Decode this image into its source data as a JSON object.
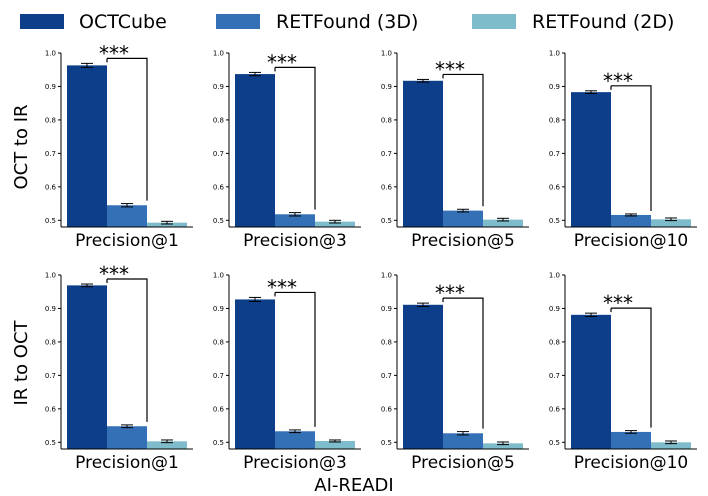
{
  "legend": [
    {
      "name": "OCTCube",
      "color": "#0d3e8a"
    },
    {
      "name": "RETFound (3D)",
      "color": "#3470b5"
    },
    {
      "name": "RETFound (2D)",
      "color": "#7fbccb"
    }
  ],
  "row_labels": [
    "OCT to IR",
    "IR to OCT"
  ],
  "xlabel": "AI-READI",
  "significance_label": "***",
  "chart_data": [
    {
      "type": "bar",
      "row": "OCT to IR",
      "category": "Precision@1",
      "ylim": [
        0.48,
        1.0
      ],
      "yticks": [
        "0.5",
        "0.6",
        "0.7",
        "0.8",
        "0.9",
        "1.0"
      ],
      "series": [
        {
          "name": "OCTCube",
          "values": [
            0.963
          ],
          "errors": [
            0.006
          ]
        },
        {
          "name": "RETFound (3D)",
          "values": [
            0.545
          ],
          "errors": [
            0.005
          ]
        },
        {
          "name": "RETFound (2D)",
          "values": [
            0.493
          ],
          "errors": [
            0.004
          ]
        }
      ]
    },
    {
      "type": "bar",
      "row": "OCT to IR",
      "category": "Precision@3",
      "ylim": [
        0.48,
        1.0
      ],
      "yticks": [
        "0.5",
        "0.6",
        "0.7",
        "0.8",
        "0.9",
        "1.0"
      ],
      "series": [
        {
          "name": "OCTCube",
          "values": [
            0.937
          ],
          "errors": [
            0.005
          ]
        },
        {
          "name": "RETFound (3D)",
          "values": [
            0.518
          ],
          "errors": [
            0.005
          ]
        },
        {
          "name": "RETFound (2D)",
          "values": [
            0.496
          ],
          "errors": [
            0.004
          ]
        }
      ]
    },
    {
      "type": "bar",
      "row": "OCT to IR",
      "category": "Precision@5",
      "ylim": [
        0.48,
        1.0
      ],
      "yticks": [
        "0.5",
        "0.6",
        "0.7",
        "0.8",
        "0.9",
        "1.0"
      ],
      "series": [
        {
          "name": "OCTCube",
          "values": [
            0.917
          ],
          "errors": [
            0.004
          ]
        },
        {
          "name": "RETFound (3D)",
          "values": [
            0.529
          ],
          "errors": [
            0.004
          ]
        },
        {
          "name": "RETFound (2D)",
          "values": [
            0.502
          ],
          "errors": [
            0.004
          ]
        }
      ]
    },
    {
      "type": "bar",
      "row": "OCT to IR",
      "category": "Precision@10",
      "ylim": [
        0.48,
        1.0
      ],
      "yticks": [
        "0.5",
        "0.6",
        "0.7",
        "0.8",
        "0.9",
        "1.0"
      ],
      "series": [
        {
          "name": "OCTCube",
          "values": [
            0.883
          ],
          "errors": [
            0.004
          ]
        },
        {
          "name": "RETFound (3D)",
          "values": [
            0.516
          ],
          "errors": [
            0.003
          ]
        },
        {
          "name": "RETFound (2D)",
          "values": [
            0.503
          ],
          "errors": [
            0.004
          ]
        }
      ]
    },
    {
      "type": "bar",
      "row": "IR to OCT",
      "category": "Precision@1",
      "ylim": [
        0.48,
        1.0
      ],
      "yticks": [
        "0.5",
        "0.6",
        "0.7",
        "0.8",
        "0.9",
        "1.0"
      ],
      "series": [
        {
          "name": "OCTCube",
          "values": [
            0.969
          ],
          "errors": [
            0.004
          ]
        },
        {
          "name": "RETFound (3D)",
          "values": [
            0.548
          ],
          "errors": [
            0.004
          ]
        },
        {
          "name": "RETFound (2D)",
          "values": [
            0.503
          ],
          "errors": [
            0.004
          ]
        }
      ]
    },
    {
      "type": "bar",
      "row": "IR to OCT",
      "category": "Precision@3",
      "ylim": [
        0.48,
        1.0
      ],
      "yticks": [
        "0.5",
        "0.6",
        "0.7",
        "0.8",
        "0.9",
        "1.0"
      ],
      "series": [
        {
          "name": "OCTCube",
          "values": [
            0.927
          ],
          "errors": [
            0.006
          ]
        },
        {
          "name": "RETFound (3D)",
          "values": [
            0.533
          ],
          "errors": [
            0.004
          ]
        },
        {
          "name": "RETFound (2D)",
          "values": [
            0.504
          ],
          "errors": [
            0.003
          ]
        }
      ]
    },
    {
      "type": "bar",
      "row": "IR to OCT",
      "category": "Precision@5",
      "ylim": [
        0.48,
        1.0
      ],
      "yticks": [
        "0.5",
        "0.6",
        "0.7",
        "0.8",
        "0.9",
        "1.0"
      ],
      "series": [
        {
          "name": "OCTCube",
          "values": [
            0.911
          ],
          "errors": [
            0.005
          ]
        },
        {
          "name": "RETFound (3D)",
          "values": [
            0.527
          ],
          "errors": [
            0.005
          ]
        },
        {
          "name": "RETFound (2D)",
          "values": [
            0.497
          ],
          "errors": [
            0.004
          ]
        }
      ]
    },
    {
      "type": "bar",
      "row": "IR to OCT",
      "category": "Precision@10",
      "ylim": [
        0.48,
        1.0
      ],
      "yticks": [
        "0.5",
        "0.6",
        "0.7",
        "0.8",
        "0.9",
        "1.0"
      ],
      "series": [
        {
          "name": "OCTCube",
          "values": [
            0.881
          ],
          "errors": [
            0.005
          ]
        },
        {
          "name": "RETFound (3D)",
          "values": [
            0.531
          ],
          "errors": [
            0.004
          ]
        },
        {
          "name": "RETFound (2D)",
          "values": [
            0.5
          ],
          "errors": [
            0.004
          ]
        }
      ]
    }
  ]
}
